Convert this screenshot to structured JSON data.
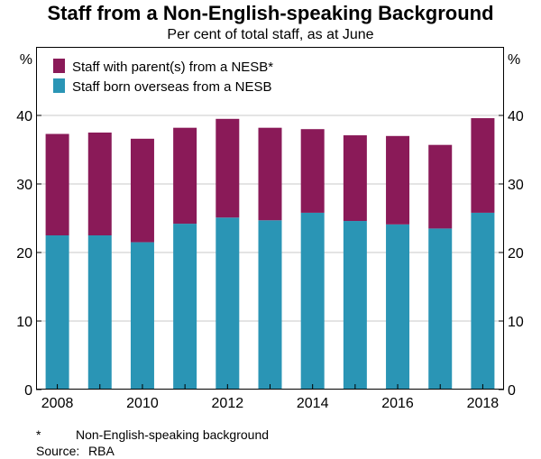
{
  "title": "Staff from a Non-English-speaking Background",
  "subtitle": "Per cent of total staff, as at June",
  "footnotes": {
    "marker": "*",
    "text": "Non-English-speaking background",
    "source_label": "Source:",
    "source_text": "RBA"
  },
  "colors": {
    "overseas": "#2A95B5",
    "parents": "#8A1A58",
    "gridline": "#c8c8c8"
  },
  "chart_data": {
    "type": "bar",
    "stacked": true,
    "categories": [
      "2008",
      "2009",
      "2010",
      "2011",
      "2012",
      "2013",
      "2014",
      "2015",
      "2016",
      "2017",
      "2018"
    ],
    "x_tick_labels": [
      "2008",
      "",
      "2010",
      "",
      "2012",
      "",
      "2014",
      "",
      "2016",
      "",
      "2018"
    ],
    "series": [
      {
        "name": "Staff born overseas from a NESB",
        "color": "#2A95B5",
        "values": [
          22.5,
          22.5,
          21.5,
          24.2,
          25.1,
          24.7,
          25.8,
          24.6,
          24.1,
          23.5,
          25.8
        ]
      },
      {
        "name": "Staff with parent(s) from a NESB*",
        "color": "#8A1A58",
        "values": [
          14.8,
          15.0,
          15.1,
          14.0,
          14.4,
          13.5,
          12.2,
          12.5,
          12.9,
          12.2,
          13.8
        ]
      }
    ],
    "legend_order": [
      1,
      0
    ],
    "legend_position": "top-left",
    "ylabel_left": "%",
    "ylabel_right": "%",
    "ylim": [
      0,
      50
    ],
    "yticks": [
      0,
      10,
      20,
      30,
      40
    ],
    "grid": true
  }
}
